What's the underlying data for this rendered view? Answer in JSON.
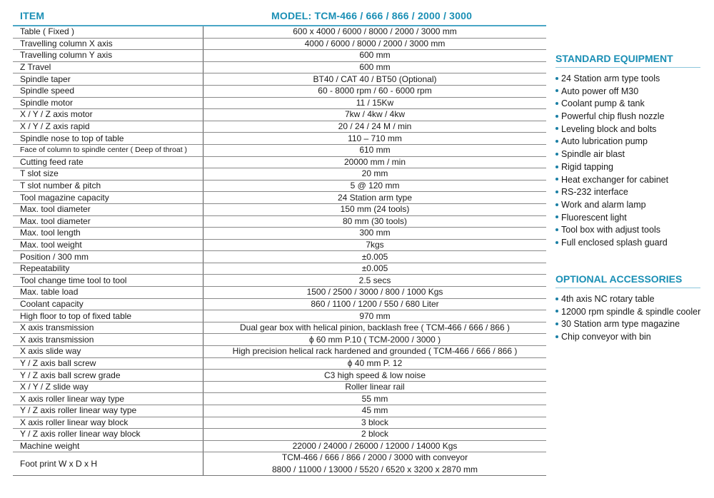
{
  "header": {
    "item": "ITEM",
    "model": "MODEL: TCM-466 / 666 / 866 / 2000 / 3000"
  },
  "colors": {
    "accent": "#1a8fb5",
    "text": "#1a1a1a"
  },
  "specs": [
    {
      "item": "Table ( Fixed )",
      "value": "600 x 4000 / 6000 / 8000 / 2000 / 3000 mm"
    },
    {
      "item": "Travelling column X axis",
      "value": "4000 / 6000 / 8000 / 2000 / 3000 mm"
    },
    {
      "item": "Travelling column Y axis",
      "value": "600 mm"
    },
    {
      "item": "Z Travel",
      "value": "600 mm"
    },
    {
      "item": "Spindle taper",
      "value": "BT40 / CAT 40 / BT50 (Optional)"
    },
    {
      "item": "Spindle speed",
      "value": "60 - 8000 rpm / 60 - 6000 rpm"
    },
    {
      "item": "Spindle motor",
      "value": "11 / 15Kw"
    },
    {
      "item": "X / Y / Z axis motor",
      "value": "7kw / 4kw / 4kw"
    },
    {
      "item": "X / Y / Z axis rapid",
      "value": "20 / 24 / 24 M / min"
    },
    {
      "item": "Spindle nose to top of table",
      "value": "110 – 710 mm"
    },
    {
      "item": "Face of column to spindle center ( Deep of throat )",
      "value": "610 mm"
    },
    {
      "item": "Cutting feed rate",
      "value": "20000 mm / min"
    },
    {
      "item": "T slot size",
      "value": "20 mm"
    },
    {
      "item": "T slot number & pitch",
      "value": "5 @ 120 mm"
    },
    {
      "item": "Tool magazine capacity",
      "value": "24 Station arm type"
    },
    {
      "item": "Max. tool diameter",
      "value": "150 mm (24 tools)"
    },
    {
      "item": "Max. tool diameter",
      "value": "80 mm (30 tools)"
    },
    {
      "item": "Max. tool length",
      "value": "300 mm"
    },
    {
      "item": "Max. tool weight",
      "value": "7kgs"
    },
    {
      "item": "Position / 300 mm",
      "value": "±0.005"
    },
    {
      "item": "Repeatability",
      "value": "±0.005"
    },
    {
      "item": "Tool change time tool to tool",
      "value": "2.5 secs"
    },
    {
      "item": "Max. table load",
      "value": "1500 / 2500 / 3000 / 800 / 1000 Kgs"
    },
    {
      "item": "Coolant capacity",
      "value": "860 / 1100 / 1200 / 550 / 680 Liter"
    },
    {
      "item": "High floor to top of fixed table",
      "value": "970 mm"
    },
    {
      "item": "X axis transmission",
      "value": "Dual gear box with helical pinion, backlash free ( TCM-466 / 666 / 866 )"
    },
    {
      "item": "X axis transmission",
      "value": "ϕ 60 mm P.10 ( TCM-2000 / 3000 )"
    },
    {
      "item": "X axis slide way",
      "value": "High precision helical rack hardened and grounded ( TCM-466 / 666 / 866 )"
    },
    {
      "item": "Y / Z axis ball screw",
      "value": "ϕ 40 mm P. 12"
    },
    {
      "item": "Y / Z axis ball screw grade",
      "value": "C3 high speed & low noise"
    },
    {
      "item": "X / Y / Z slide way",
      "value": "Roller linear rail"
    },
    {
      "item": "X axis roller linear way type",
      "value": "55 mm"
    },
    {
      "item": "Y / Z axis roller linear way type",
      "value": "45 mm"
    },
    {
      "item": "X axis roller linear way block",
      "value": "3 block"
    },
    {
      "item": "Y / Z axis roller linear way block",
      "value": "2 block"
    },
    {
      "item": "Machine weight",
      "value": "22000 / 24000 / 26000 / 12000 / 14000 Kgs"
    }
  ],
  "footprint": {
    "item": "Foot print W x D x H",
    "line1": "TCM-466 / 666 / 866 / 2000 / 3000 with conveyor",
    "line2": "8800 / 11000 / 13000 / 5520 / 6520 x 3200 x 2870 mm"
  },
  "standard": {
    "title": "STANDARD EQUIPMENT",
    "items": [
      "24 Station arm type tools",
      "Auto power off M30",
      "Coolant pump & tank",
      "Powerful chip flush nozzle",
      "Leveling block and bolts",
      "Auto lubrication pump",
      "Spindle air blast",
      "Rigid tapping",
      "Heat exchanger for cabinet",
      "RS-232 interface",
      "Work and alarm lamp",
      "Fluorescent light",
      "Tool box with adjust tools",
      "Full enclosed splash guard"
    ]
  },
  "optional": {
    "title": "OPTIONAL ACCESSORIES",
    "items": [
      "4th axis NC rotary table",
      "12000 rpm spindle & spindle cooler",
      "30 Station arm type magazine",
      "Chip conveyor with bin"
    ]
  }
}
